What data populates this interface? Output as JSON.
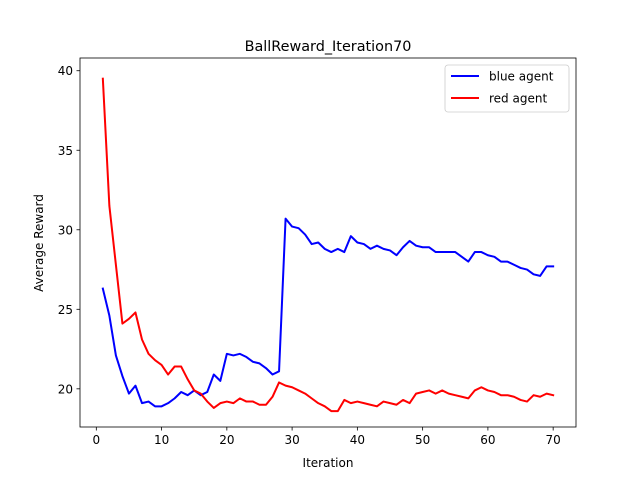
{
  "chart_data": {
    "type": "line",
    "title": "BallReward_Iteration70",
    "xlabel": "Iteration",
    "ylabel": "Average Reward",
    "xlim": [
      -2.5,
      73.5
    ],
    "ylim": [
      17.6,
      40.8
    ],
    "xticks": [
      0,
      10,
      20,
      30,
      40,
      50,
      60,
      70
    ],
    "yticks": [
      20,
      25,
      30,
      35,
      40
    ],
    "grid": false,
    "legend": "top-right",
    "x": [
      1,
      2,
      3,
      4,
      5,
      6,
      7,
      8,
      9,
      10,
      11,
      12,
      13,
      14,
      15,
      16,
      17,
      18,
      19,
      20,
      21,
      22,
      23,
      24,
      25,
      26,
      27,
      28,
      29,
      30,
      31,
      32,
      33,
      34,
      35,
      36,
      37,
      38,
      39,
      40,
      41,
      42,
      43,
      44,
      45,
      46,
      47,
      48,
      49,
      50,
      51,
      52,
      53,
      54,
      55,
      56,
      57,
      58,
      59,
      60,
      61,
      62,
      63,
      64,
      65,
      66,
      67,
      68,
      69,
      70
    ],
    "series": [
      {
        "name": "blue agent",
        "color": "#0000ff",
        "values": [
          26.3,
          24.6,
          22.1,
          20.8,
          19.7,
          20.2,
          19.1,
          19.2,
          18.9,
          18.9,
          19.1,
          19.4,
          19.8,
          19.6,
          19.9,
          19.6,
          19.8,
          20.9,
          20.5,
          22.2,
          22.1,
          22.2,
          22.0,
          21.7,
          21.6,
          21.3,
          20.9,
          21.1,
          30.7,
          30.2,
          30.1,
          29.7,
          29.1,
          29.2,
          28.8,
          28.6,
          28.8,
          28.6,
          29.6,
          29.2,
          29.1,
          28.8,
          29.0,
          28.8,
          28.7,
          28.4,
          28.9,
          29.3,
          29.0,
          28.9,
          28.9,
          28.6,
          28.6,
          28.6,
          28.6,
          28.3,
          28.0,
          28.6,
          28.6,
          28.4,
          28.3,
          28.0,
          28.0,
          27.8,
          27.6,
          27.5,
          27.2,
          27.1,
          27.7,
          27.7
        ]
      },
      {
        "name": "red agent",
        "color": "#ff0000",
        "values": [
          39.5,
          31.5,
          27.8,
          24.1,
          24.4,
          24.8,
          23.1,
          22.2,
          21.8,
          21.5,
          20.9,
          21.4,
          21.4,
          20.6,
          19.9,
          19.7,
          19.2,
          18.8,
          19.1,
          19.2,
          19.1,
          19.4,
          19.2,
          19.2,
          19.0,
          19.0,
          19.5,
          20.4,
          20.2,
          20.1,
          19.9,
          19.7,
          19.4,
          19.1,
          18.9,
          18.6,
          18.6,
          19.3,
          19.1,
          19.2,
          19.1,
          19.0,
          18.9,
          19.2,
          19.1,
          19.0,
          19.3,
          19.1,
          19.7,
          19.8,
          19.9,
          19.7,
          19.9,
          19.7,
          19.6,
          19.5,
          19.4,
          19.9,
          20.1,
          19.9,
          19.8,
          19.6,
          19.6,
          19.5,
          19.3,
          19.2,
          19.6,
          19.5,
          19.7,
          19.6
        ]
      }
    ]
  }
}
